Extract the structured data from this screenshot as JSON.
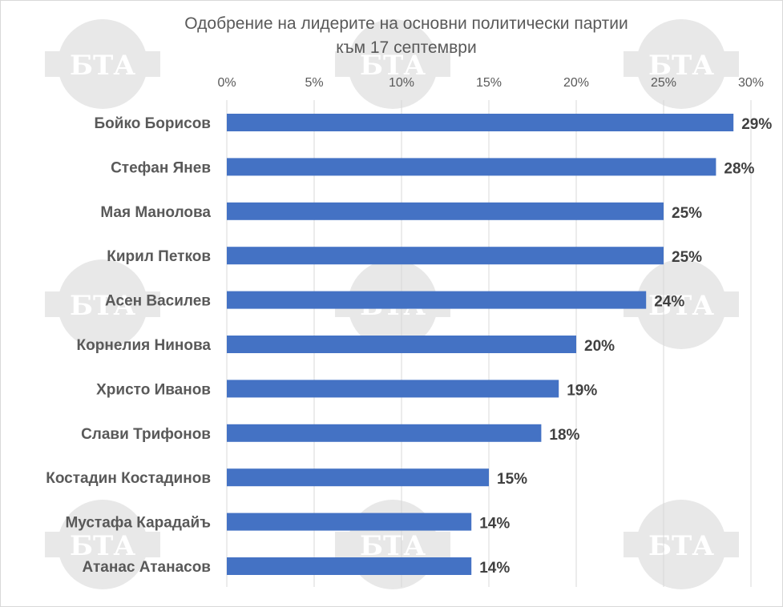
{
  "chart_data": {
    "type": "bar",
    "orientation": "horizontal",
    "title": "Одобрение на лидерите на основни политически партии",
    "subtitle": "към 17 септември",
    "categories": [
      "Бойко Борисов",
      "Стефан Янев",
      "Мая Манолова",
      "Кирил Петков",
      "Асен Василев",
      "Корнелия Нинова",
      "Христо Иванов",
      "Слави Трифонов",
      "Костадин Костадинов",
      "Мустафа Карадайъ",
      "Атанас Атанасов"
    ],
    "values": [
      29,
      28,
      25,
      25,
      24,
      20,
      19,
      18,
      15,
      14,
      14
    ],
    "value_labels": [
      "29%",
      "28%",
      "25%",
      "25%",
      "24%",
      "20%",
      "19%",
      "18%",
      "15%",
      "14%",
      "14%"
    ],
    "x_ticks": [
      "0%",
      "5%",
      "10%",
      "15%",
      "20%",
      "25%",
      "30%"
    ],
    "x_tick_values": [
      0,
      5,
      10,
      15,
      20,
      25,
      30
    ],
    "xlim": [
      0,
      30
    ],
    "xaxis_position": "top",
    "grid": true,
    "legend": "none",
    "bar_color": "#4472c4",
    "grid_color": "#d9d9d9"
  },
  "watermark": {
    "text": "БТА",
    "color": "#e8e8e8"
  }
}
